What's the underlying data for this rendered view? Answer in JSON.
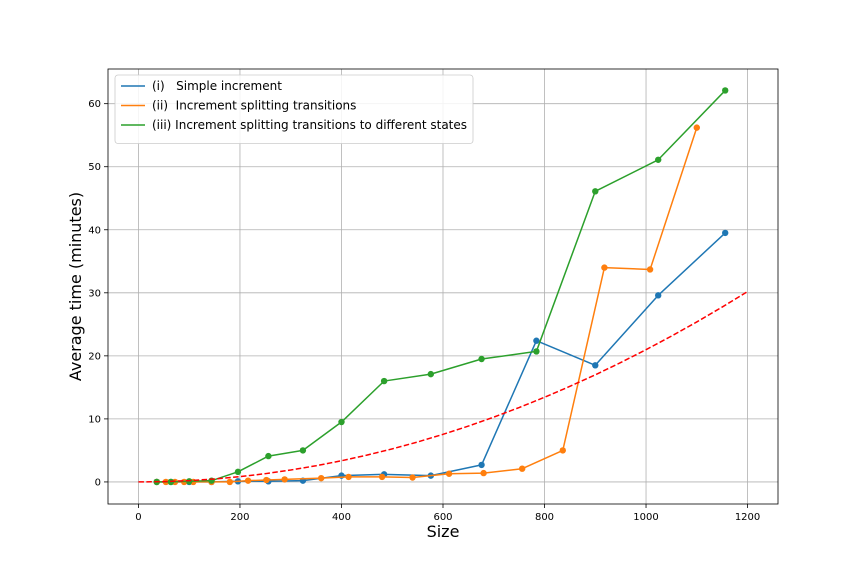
{
  "chart_data": {
    "type": "line",
    "xlabel": "Size",
    "ylabel": "Average time (minutes)",
    "xlim": [
      -60,
      1260
    ],
    "ylim": [
      -3.5,
      65.5
    ],
    "xticks": [
      0,
      200,
      400,
      600,
      800,
      1000,
      1200
    ],
    "yticks": [
      0,
      10,
      20,
      30,
      40,
      50,
      60
    ],
    "grid": true,
    "legend_position": "top-left",
    "series": [
      {
        "name": "(i)   Simple increment",
        "color": "#1f77b4",
        "marker": "circle",
        "x": [
          36,
          64,
          100,
          144,
          196,
          256,
          324,
          400,
          484,
          576,
          676,
          784,
          900,
          1024,
          1156
        ],
        "y": [
          0.0,
          0.0,
          0.0,
          0.0,
          0.1,
          0.1,
          0.2,
          1.0,
          1.2,
          1.0,
          2.7,
          22.4,
          18.5,
          29.6,
          39.5
        ]
      },
      {
        "name": "(ii)  Increment splitting transitions",
        "color": "#ff7f0e",
        "marker": "circle",
        "x": [
          36,
          54,
          72,
          90,
          108,
          144,
          180,
          216,
          252,
          288,
          360,
          414,
          480,
          540,
          612,
          680,
          756,
          836,
          918,
          1008,
          1100
        ],
        "y": [
          0.0,
          0.0,
          0.0,
          0.0,
          0.0,
          0.0,
          0.0,
          0.2,
          0.3,
          0.4,
          0.6,
          0.8,
          0.8,
          0.7,
          1.3,
          1.4,
          2.1,
          5.0,
          34.0,
          33.7,
          56.2
        ]
      },
      {
        "name": "(iii) Increment splitting transitions to different states",
        "color": "#2ca02c",
        "marker": "circle",
        "x": [
          36,
          64,
          100,
          144,
          196,
          256,
          324,
          400,
          484,
          576,
          676,
          784,
          900,
          1024,
          1156
        ],
        "y": [
          0.0,
          0.0,
          0.1,
          0.2,
          1.6,
          4.1,
          5.0,
          9.5,
          16.0,
          17.1,
          19.5,
          20.7,
          46.1,
          51.1,
          62.1
        ]
      },
      {
        "color": "#ff0000",
        "style": "dashed",
        "x": [
          0,
          50,
          100,
          150,
          200,
          250,
          300,
          350,
          400,
          450,
          500,
          550,
          600,
          650,
          700,
          750,
          800,
          850,
          900,
          950,
          1000,
          1050,
          1100,
          1150,
          1200
        ],
        "y": [
          0.0,
          0.05,
          0.21,
          0.47,
          0.84,
          1.31,
          1.89,
          2.57,
          3.36,
          4.25,
          5.24,
          6.34,
          7.55,
          8.86,
          10.28,
          11.8,
          13.43,
          15.16,
          16.99,
          18.93,
          20.98,
          23.13,
          25.38,
          27.74,
          30.2
        ]
      }
    ]
  }
}
